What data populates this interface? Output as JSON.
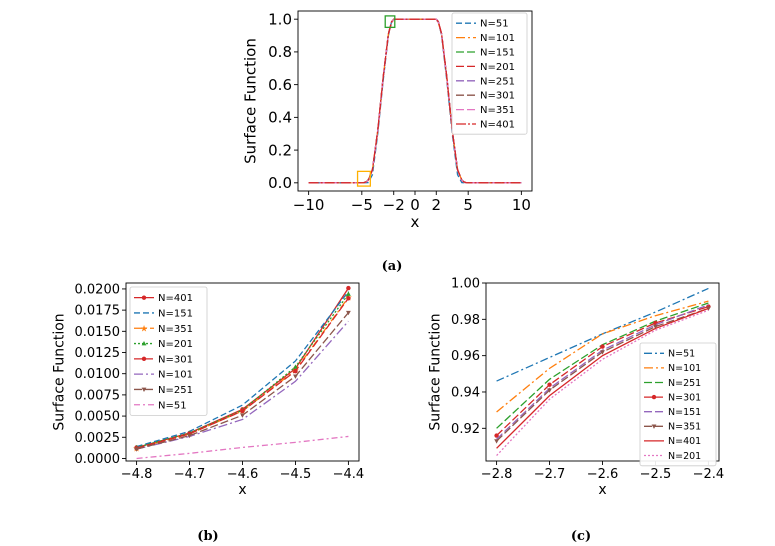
{
  "captions": {
    "a": "(a)",
    "b": "(b)",
    "c": "(c)"
  },
  "chart_data": [
    {
      "id": "a",
      "type": "line",
      "title": "",
      "xlabel": "x",
      "ylabel": "Surface Function",
      "xlim": [
        -11,
        11
      ],
      "ylim": [
        -0.05,
        1.05
      ],
      "xticks": [
        -10,
        -5,
        -2,
        0,
        2,
        5,
        10
      ],
      "xtick_labels": [
        "−10",
        "−5",
        "−2",
        "0",
        "2",
        "5",
        "10"
      ],
      "yticks": [
        0.0,
        0.2,
        0.4,
        0.6,
        0.8,
        1.0
      ],
      "ytick_labels": [
        "0.0",
        "0.2",
        "0.4",
        "0.6",
        "0.8",
        "1.0"
      ],
      "legend_position": "right",
      "x": [
        -10,
        -6,
        -5.5,
        -5,
        -4.8,
        -4.6,
        -4.4,
        -4,
        -3.5,
        -3,
        -2.5,
        -2.2,
        -2,
        0,
        2,
        2.2,
        2.5,
        3,
        3.5,
        4,
        4.4,
        4.6,
        4.8,
        5,
        5.5,
        6,
        10
      ],
      "series": [
        {
          "name": "N=51",
          "color": "#1f77b4",
          "dash": "6,3",
          "values": [
            0,
            0,
            0,
            0,
            0.0003,
            0.0007,
            0.0011,
            0.05,
            0.3,
            0.62,
            0.9,
            0.985,
            1,
            1,
            1,
            0.985,
            0.9,
            0.62,
            0.3,
            0.05,
            0.0011,
            0.0007,
            0.0003,
            0,
            0,
            0,
            0
          ]
        },
        {
          "name": "N=101",
          "color": "#ff7f0e",
          "dash": "9,3,2,3",
          "values": [
            0,
            0,
            0,
            0.0005,
            0.0012,
            0.005,
            0.016,
            0.08,
            0.32,
            0.64,
            0.91,
            0.975,
            1,
            1,
            1,
            0.975,
            0.91,
            0.64,
            0.32,
            0.08,
            0.016,
            0.005,
            0.0012,
            0.0005,
            0,
            0,
            0
          ]
        },
        {
          "name": "N=151",
          "color": "#2ca02c",
          "dash": "8,3",
          "values": [
            0,
            0,
            0,
            0.0005,
            0.0013,
            0.006,
            0.018,
            0.08,
            0.32,
            0.64,
            0.91,
            0.98,
            1,
            1,
            1,
            0.98,
            0.91,
            0.64,
            0.32,
            0.08,
            0.018,
            0.006,
            0.0013,
            0.0005,
            0,
            0,
            0
          ]
        },
        {
          "name": "N=201",
          "color": "#d62728",
          "dash": "8,3",
          "values": [
            0,
            0,
            0,
            0.0005,
            0.0012,
            0.005,
            0.016,
            0.08,
            0.32,
            0.64,
            0.91,
            0.985,
            1,
            1,
            1,
            0.985,
            0.91,
            0.64,
            0.32,
            0.08,
            0.016,
            0.005,
            0.0012,
            0.0005,
            0,
            0,
            0
          ]
        },
        {
          "name": "N=251",
          "color": "#9467bd",
          "dash": "8,3",
          "values": [
            0,
            0,
            0,
            0.0005,
            0.0012,
            0.005,
            0.016,
            0.08,
            0.32,
            0.64,
            0.91,
            0.98,
            1,
            1,
            1,
            0.98,
            0.91,
            0.64,
            0.32,
            0.08,
            0.016,
            0.005,
            0.0012,
            0.0005,
            0,
            0,
            0
          ]
        },
        {
          "name": "N=301",
          "color": "#8c564b",
          "dash": "8,3",
          "values": [
            0,
            0,
            0,
            0.0005,
            0.0012,
            0.005,
            0.016,
            0.08,
            0.32,
            0.64,
            0.91,
            0.98,
            1,
            1,
            1,
            0.98,
            0.91,
            0.64,
            0.32,
            0.08,
            0.016,
            0.005,
            0.0012,
            0.0005,
            0,
            0,
            0
          ]
        },
        {
          "name": "N=351",
          "color": "#e377c2",
          "dash": "8,3",
          "values": [
            0,
            0,
            0,
            0.0005,
            0.0012,
            0.005,
            0.016,
            0.08,
            0.32,
            0.64,
            0.91,
            0.98,
            1,
            1,
            1,
            0.98,
            0.91,
            0.64,
            0.32,
            0.08,
            0.016,
            0.005,
            0.0012,
            0.0005,
            0,
            0,
            0
          ]
        },
        {
          "name": "N=401",
          "color": "#d62728",
          "dash": "10,2,2,2",
          "values": [
            0,
            0,
            0,
            0.0005,
            0.0013,
            0.006,
            0.018,
            0.08,
            0.32,
            0.64,
            0.91,
            0.985,
            1,
            1,
            1,
            0.985,
            0.91,
            0.64,
            0.32,
            0.08,
            0.018,
            0.006,
            0.0013,
            0.0005,
            0,
            0,
            0
          ]
        }
      ],
      "annotations": [
        {
          "shape": "box",
          "color": "#2ca02c",
          "x_range": [
            -2.8,
            -1.9
          ],
          "y_range": [
            0.95,
            1.02
          ]
        },
        {
          "shape": "box",
          "color": "#ffb000",
          "x_range": [
            -5.4,
            -4.2
          ],
          "y_range": [
            -0.02,
            0.07
          ]
        }
      ]
    },
    {
      "id": "b",
      "type": "line",
      "title": "",
      "xlabel": "x",
      "ylabel": "Surface Function",
      "xlim": [
        -4.82,
        -4.38
      ],
      "ylim": [
        -0.0003,
        0.0207
      ],
      "xticks": [
        -4.8,
        -4.7,
        -4.6,
        -4.5,
        -4.4
      ],
      "xtick_labels": [
        "−4.8",
        "−4.7",
        "−4.6",
        "−4.5",
        "−4.4"
      ],
      "yticks": [
        0.0,
        0.0025,
        0.005,
        0.0075,
        0.01,
        0.0125,
        0.015,
        0.0175,
        0.02
      ],
      "ytick_labels": [
        "0.0000",
        "0.0025",
        "0.0050",
        "0.0075",
        "0.0100",
        "0.0125",
        "0.0150",
        "0.0175",
        "0.0200"
      ],
      "legend_position": "upper-left",
      "x": [
        -4.8,
        -4.7,
        -4.6,
        -4.5,
        -4.4
      ],
      "series": [
        {
          "name": "N=401",
          "color": "#d62728",
          "dash": "",
          "marker": "dot",
          "values": [
            0.0013,
            0.003,
            0.0058,
            0.0106,
            0.0201
          ]
        },
        {
          "name": "N=151",
          "color": "#1f77b4",
          "dash": "6,3",
          "marker": "",
          "values": [
            0.0014,
            0.0032,
            0.0063,
            0.0115,
            0.0197
          ]
        },
        {
          "name": "N=351",
          "color": "#ff7f0e",
          "dash": "8,3,2,3",
          "marker": "star",
          "values": [
            0.0012,
            0.0029,
            0.0056,
            0.0104,
            0.019
          ]
        },
        {
          "name": "N=201",
          "color": "#2ca02c",
          "dash": "2,2",
          "marker": "triangle",
          "values": [
            0.0013,
            0.003,
            0.0057,
            0.0108,
            0.0194
          ]
        },
        {
          "name": "N=301",
          "color": "#d62728",
          "dash": "8,3",
          "marker": "dot",
          "values": [
            0.0012,
            0.0029,
            0.0056,
            0.0103,
            0.0189
          ]
        },
        {
          "name": "N=101",
          "color": "#9467bd",
          "dash": "9,3,2,3",
          "marker": "",
          "values": [
            0.0011,
            0.0026,
            0.0046,
            0.0091,
            0.0162
          ]
        },
        {
          "name": "N=251",
          "color": "#8c564b",
          "dash": "8,3",
          "marker": "tri_down",
          "values": [
            0.0011,
            0.0027,
            0.0051,
            0.0097,
            0.0172
          ]
        },
        {
          "name": "N=51",
          "color": "#e377c2",
          "dash": "6,3,2,3",
          "marker": "",
          "values": [
            0.0,
            0.0006,
            0.0013,
            0.0019,
            0.0026
          ]
        }
      ]
    },
    {
      "id": "c",
      "type": "line",
      "title": "",
      "xlabel": "x",
      "ylabel": "Surface Function",
      "xlim": [
        -2.82,
        -2.38
      ],
      "ylim": [
        0.902,
        1.0
      ],
      "xticks": [
        -2.8,
        -2.7,
        -2.6,
        -2.5,
        -2.4
      ],
      "xtick_labels": [
        "−2.8",
        "−2.7",
        "−2.6",
        "−2.5",
        "−2.4"
      ],
      "yticks": [
        0.92,
        0.94,
        0.96,
        0.98,
        1.0
      ],
      "ytick_labels": [
        "0.92",
        "0.94",
        "0.96",
        "0.98",
        "1.00"
      ],
      "legend_position": "lower-right",
      "x": [
        -2.8,
        -2.7,
        -2.6,
        -2.5,
        -2.4
      ],
      "series": [
        {
          "name": "N=51",
          "color": "#1f77b4",
          "dash": "8,3,2,3",
          "marker": "",
          "values": [
            0.946,
            0.959,
            0.972,
            0.984,
            0.997
          ]
        },
        {
          "name": "N=101",
          "color": "#ff7f0e",
          "dash": "9,3,2,3",
          "marker": "",
          "values": [
            0.929,
            0.953,
            0.972,
            0.982,
            0.99
          ]
        },
        {
          "name": "N=251",
          "color": "#2ca02c",
          "dash": "8,3",
          "marker": "",
          "values": [
            0.92,
            0.947,
            0.966,
            0.979,
            0.989
          ]
        },
        {
          "name": "N=301",
          "color": "#d62728",
          "dash": "8,3",
          "marker": "dot",
          "values": [
            0.916,
            0.944,
            0.965,
            0.978,
            0.987
          ]
        },
        {
          "name": "N=151",
          "color": "#9467bd",
          "dash": "8,3",
          "marker": "",
          "values": [
            0.914,
            0.942,
            0.963,
            0.977,
            0.988
          ]
        },
        {
          "name": "N=351",
          "color": "#8c564b",
          "dash": "8,3",
          "marker": "tri_down",
          "values": [
            0.913,
            0.941,
            0.962,
            0.976,
            0.986
          ]
        },
        {
          "name": "N=401",
          "color": "#d62728",
          "dash": "",
          "marker": "",
          "values": [
            0.909,
            0.938,
            0.96,
            0.975,
            0.986
          ]
        },
        {
          "name": "N=201",
          "color": "#e377c2",
          "dash": "2,2",
          "marker": "",
          "values": [
            0.905,
            0.936,
            0.958,
            0.974,
            0.985
          ]
        }
      ]
    }
  ]
}
